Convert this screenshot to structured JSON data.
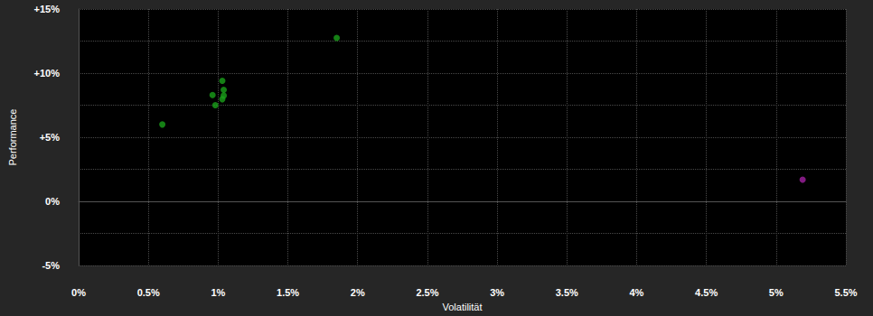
{
  "chart_data": {
    "type": "scatter",
    "x_label": "Volatilität",
    "y_label": "Performance",
    "xlim": [
      0,
      5.5
    ],
    "xticks": [
      {
        "value": 0,
        "label": "0%"
      },
      {
        "value": 0.5,
        "label": "0.5%"
      },
      {
        "value": 1,
        "label": "1%"
      },
      {
        "value": 1.5,
        "label": "1.5%"
      },
      {
        "value": 2,
        "label": "2%"
      },
      {
        "value": 2.5,
        "label": "2.5%"
      },
      {
        "value": 3,
        "label": "3%"
      },
      {
        "value": 3.5,
        "label": "3.5%"
      },
      {
        "value": 4,
        "label": "4%"
      },
      {
        "value": 4.5,
        "label": "4.5%"
      },
      {
        "value": 5,
        "label": "5%"
      },
      {
        "value": 5.5,
        "label": "5.5%"
      }
    ],
    "ylim": [
      -5,
      15
    ],
    "yticks": [
      {
        "value": -5,
        "label": "-5%"
      },
      {
        "value": 0,
        "label": "0%"
      },
      {
        "value": 5,
        "label": "+5%"
      },
      {
        "value": 10,
        "label": "+10%"
      },
      {
        "value": 15,
        "label": "+15%"
      }
    ],
    "grid": true,
    "series": [
      {
        "color": "#1aa01a",
        "x": [
          0.6,
          1.03,
          0.96,
          1.04,
          1.04,
          1.03,
          0.98,
          1.85
        ],
        "values": [
          6.0,
          9.4,
          8.3,
          8.7,
          8.25,
          7.97,
          7.5,
          12.75
        ]
      },
      {
        "color": "#a020a0",
        "x": [
          5.19
        ],
        "values": [
          1.7
        ]
      }
    ]
  }
}
